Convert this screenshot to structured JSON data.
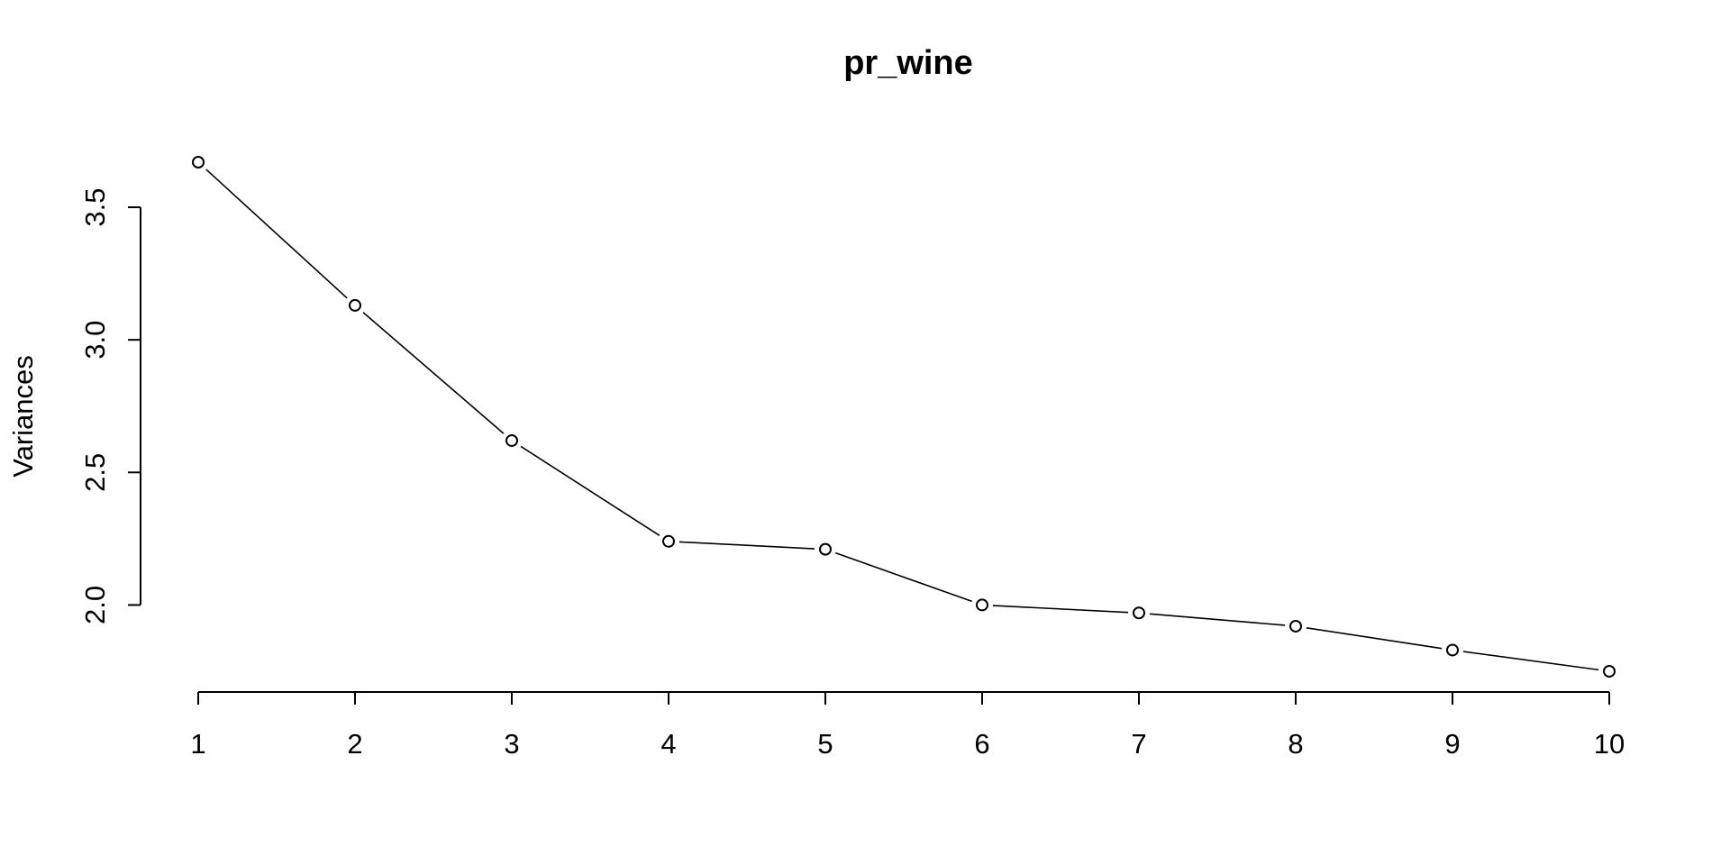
{
  "chart_data": {
    "type": "line",
    "title": "pr_wine",
    "xlabel": "",
    "ylabel": "Variances",
    "x": [
      1,
      2,
      3,
      4,
      5,
      6,
      7,
      8,
      9,
      10
    ],
    "values": [
      3.67,
      3.13,
      2.62,
      2.24,
      2.21,
      2.0,
      1.97,
      1.92,
      1.83,
      1.75
    ],
    "xlim": [
      1,
      10
    ],
    "ylim": [
      1.75,
      3.67
    ],
    "x_ticks": [
      1,
      2,
      3,
      4,
      5,
      6,
      7,
      8,
      9,
      10
    ],
    "x_tick_labels": [
      "1",
      "2",
      "3",
      "4",
      "5",
      "6",
      "7",
      "8",
      "9",
      "10"
    ],
    "y_ticks": [
      2.0,
      2.5,
      3.0,
      3.5
    ],
    "y_tick_labels": [
      "2.0",
      "2.5",
      "3.0",
      "3.5"
    ],
    "marker": "open-circle",
    "line_color": "#000000",
    "background": "#ffffff",
    "grid": false,
    "legend": "none"
  }
}
